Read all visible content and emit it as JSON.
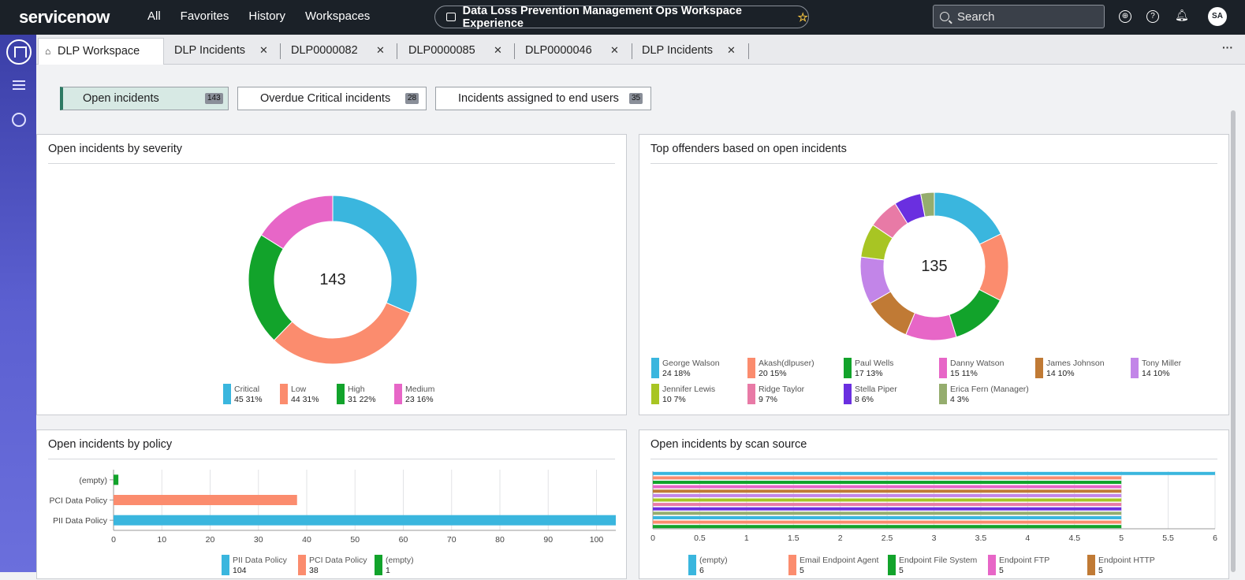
{
  "topbar": {
    "logo": "servicenow",
    "nav": [
      "All",
      "Favorites",
      "History",
      "Workspaces"
    ],
    "workspace_title": "Data Loss Prevention Management Ops Workspace Experience",
    "search_label": "Search",
    "avatar": "SA"
  },
  "tabs": [
    {
      "label": "DLP Workspace"
    },
    {
      "label": "DLP Incidents"
    },
    {
      "label": "DLP0000082"
    },
    {
      "label": "DLP0000085"
    },
    {
      "label": "DLP0000046"
    },
    {
      "label": "DLP Incidents"
    }
  ],
  "filters": [
    {
      "label": "Open incidents",
      "count": "143"
    },
    {
      "label": "Overdue Critical incidents",
      "count": "28"
    },
    {
      "label": "Incidents assigned to end users",
      "count": "35"
    }
  ],
  "cards": {
    "severity_title": "Open incidents by severity",
    "offenders_title": "Top offenders based on open incidents",
    "policy_title": "Open incidents by policy",
    "scan_title": "Open incidents by scan source"
  },
  "chart_data": [
    {
      "type": "pie",
      "title": "Open incidents by severity",
      "center_label": "143",
      "slices": [
        {
          "name": "Critical",
          "value": 45,
          "pct": "31%",
          "color": "#3ab6de"
        },
        {
          "name": "Low",
          "value": 44,
          "pct": "31%",
          "color": "#fb8c6e"
        },
        {
          "name": "High",
          "value": 31,
          "pct": "22%",
          "color": "#12a32b"
        },
        {
          "name": "Medium",
          "value": 23,
          "pct": "16%",
          "color": "#e766c7"
        }
      ]
    },
    {
      "type": "pie",
      "title": "Top offenders based on open incidents",
      "center_label": "135",
      "slices": [
        {
          "name": "George Walson",
          "value": 24,
          "pct": "18%",
          "color": "#3ab6de"
        },
        {
          "name": "Akash(dlpuser)",
          "value": 20,
          "pct": "15%",
          "color": "#fb8c6e"
        },
        {
          "name": "Paul Wells",
          "value": 17,
          "pct": "13%",
          "color": "#12a32b"
        },
        {
          "name": "Danny Watson",
          "value": 15,
          "pct": "11%",
          "color": "#e766c7"
        },
        {
          "name": "James Johnson",
          "value": 14,
          "pct": "10%",
          "color": "#c07a35"
        },
        {
          "name": "Tony Miller",
          "value": 14,
          "pct": "10%",
          "color": "#c285e8"
        },
        {
          "name": "Jennifer Lewis",
          "value": 10,
          "pct": "7%",
          "color": "#a8c523"
        },
        {
          "name": "Ridge Taylor",
          "value": 9,
          "pct": "7%",
          "color": "#e87aa6"
        },
        {
          "name": "Stella Piper",
          "value": 8,
          "pct": "6%",
          "color": "#6a2fe0"
        },
        {
          "name": "Erica Fern (Manager)",
          "value": 4,
          "pct": "3%",
          "color": "#95ad6e"
        }
      ]
    },
    {
      "type": "bar",
      "orientation": "horizontal",
      "title": "Open incidents by policy",
      "categories": [
        "(empty)",
        "PCI Data Policy",
        "PII Data Policy"
      ],
      "values": [
        1,
        38,
        104
      ],
      "colors": [
        "#12a32b",
        "#fb8c6e",
        "#3ab6de"
      ],
      "xlim": [
        0,
        104
      ],
      "xticks": [
        "0",
        "10",
        "20",
        "30",
        "40",
        "50",
        "60",
        "70",
        "80",
        "90",
        "100"
      ],
      "legend": [
        {
          "name": "PII Data Policy",
          "value": "104",
          "color": "#3ab6de"
        },
        {
          "name": "PCI Data Policy",
          "value": "38",
          "color": "#fb8c6e"
        },
        {
          "name": "(empty)",
          "value": "1",
          "color": "#12a32b"
        }
      ]
    },
    {
      "type": "bar",
      "orientation": "horizontal",
      "title": "Open incidents by scan source",
      "values": [
        6,
        5,
        5,
        5,
        5,
        5,
        5,
        5,
        5,
        5,
        5,
        5,
        5
      ],
      "colors": [
        "#3ab6de",
        "#fb8c6e",
        "#12a32b",
        "#e766c7",
        "#c07a35",
        "#c285e8",
        "#a8c523",
        "#e87aa6",
        "#6a2fe0",
        "#95ad6e",
        "#3ab6de",
        "#fb8c6e",
        "#12a32b"
      ],
      "xlim": [
        0,
        6
      ],
      "xticks": [
        "0",
        "0.5",
        "1",
        "1.5",
        "2",
        "2.5",
        "3",
        "3.5",
        "4",
        "4.5",
        "5",
        "5.5",
        "6"
      ],
      "legend": [
        {
          "name": "(empty)",
          "value": "6",
          "color": "#3ab6de"
        },
        {
          "name": "Email Endpoint Agent",
          "value": "5",
          "color": "#fb8c6e"
        },
        {
          "name": "Endpoint File System",
          "value": "5",
          "color": "#12a32b"
        },
        {
          "name": "Endpoint FTP",
          "value": "5",
          "color": "#e766c7"
        },
        {
          "name": "Endpoint HTTP",
          "value": "5",
          "color": "#c07a35"
        }
      ]
    }
  ]
}
